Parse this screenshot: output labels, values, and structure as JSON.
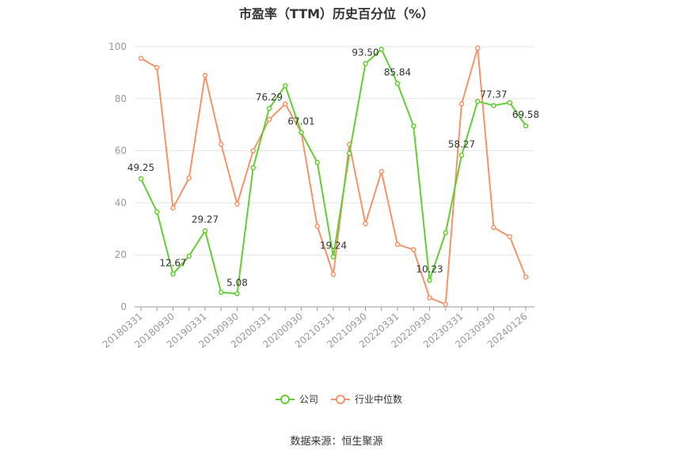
{
  "title": "市盈率（TTM）历史百分位（%）",
  "source": "数据来源：恒生聚源",
  "colors": {
    "company": "#66cc33",
    "industry": "#f4946b"
  },
  "chart_data": {
    "type": "line",
    "title": "市盈率（TTM）历史百分位（%）",
    "xlabel": "",
    "ylabel": "",
    "ylim": [
      0,
      100
    ],
    "y_ticks": [
      0,
      20,
      40,
      60,
      80,
      100
    ],
    "grid": true,
    "legend_position": "bottom",
    "x": [
      "20180331",
      "20180630",
      "20180930",
      "20181231",
      "20190331",
      "20190630",
      "20190930",
      "20191231",
      "20200331",
      "20200630",
      "20200930",
      "20201231",
      "20210331",
      "20210630",
      "20210930",
      "20211231",
      "20220331",
      "20220630",
      "20220930",
      "20221231",
      "20230331",
      "20230630",
      "20230930",
      "20231231",
      "20240126"
    ],
    "x_tick_labels": [
      "20180331",
      "20180930",
      "20190331",
      "20190930",
      "20200331",
      "20200930",
      "20210331",
      "20210930",
      "20220331",
      "20220930",
      "20230331",
      "20230930",
      "20240126"
    ],
    "series": [
      {
        "name": "公司",
        "values": [
          49.25,
          36.5,
          12.67,
          19.5,
          29.27,
          5.6,
          5.08,
          53.5,
          76.29,
          85.0,
          67.01,
          55.5,
          19.24,
          59.0,
          93.5,
          99.0,
          85.84,
          69.5,
          10.23,
          28.5,
          58.27,
          79.0,
          77.37,
          78.5,
          69.58
        ],
        "data_labels": {
          "0": "49.25",
          "2": "12.67",
          "4": "29.27",
          "6": "5.08",
          "8": "76.29",
          "10": "67.01",
          "12": "19.24",
          "14": "93.50",
          "16": "85.84",
          "18": "10.23",
          "20": "58.27",
          "22": "77.37",
          "24": "69.58"
        }
      },
      {
        "name": "行业中位数",
        "values": [
          95.5,
          92.0,
          38.0,
          49.5,
          89.0,
          62.5,
          39.5,
          60.0,
          72.0,
          78.0,
          67.0,
          31.0,
          12.5,
          62.5,
          32.0,
          52.0,
          24.0,
          22.0,
          3.5,
          1.0,
          78.0,
          99.5,
          30.5,
          27.0,
          11.5
        ]
      }
    ]
  }
}
